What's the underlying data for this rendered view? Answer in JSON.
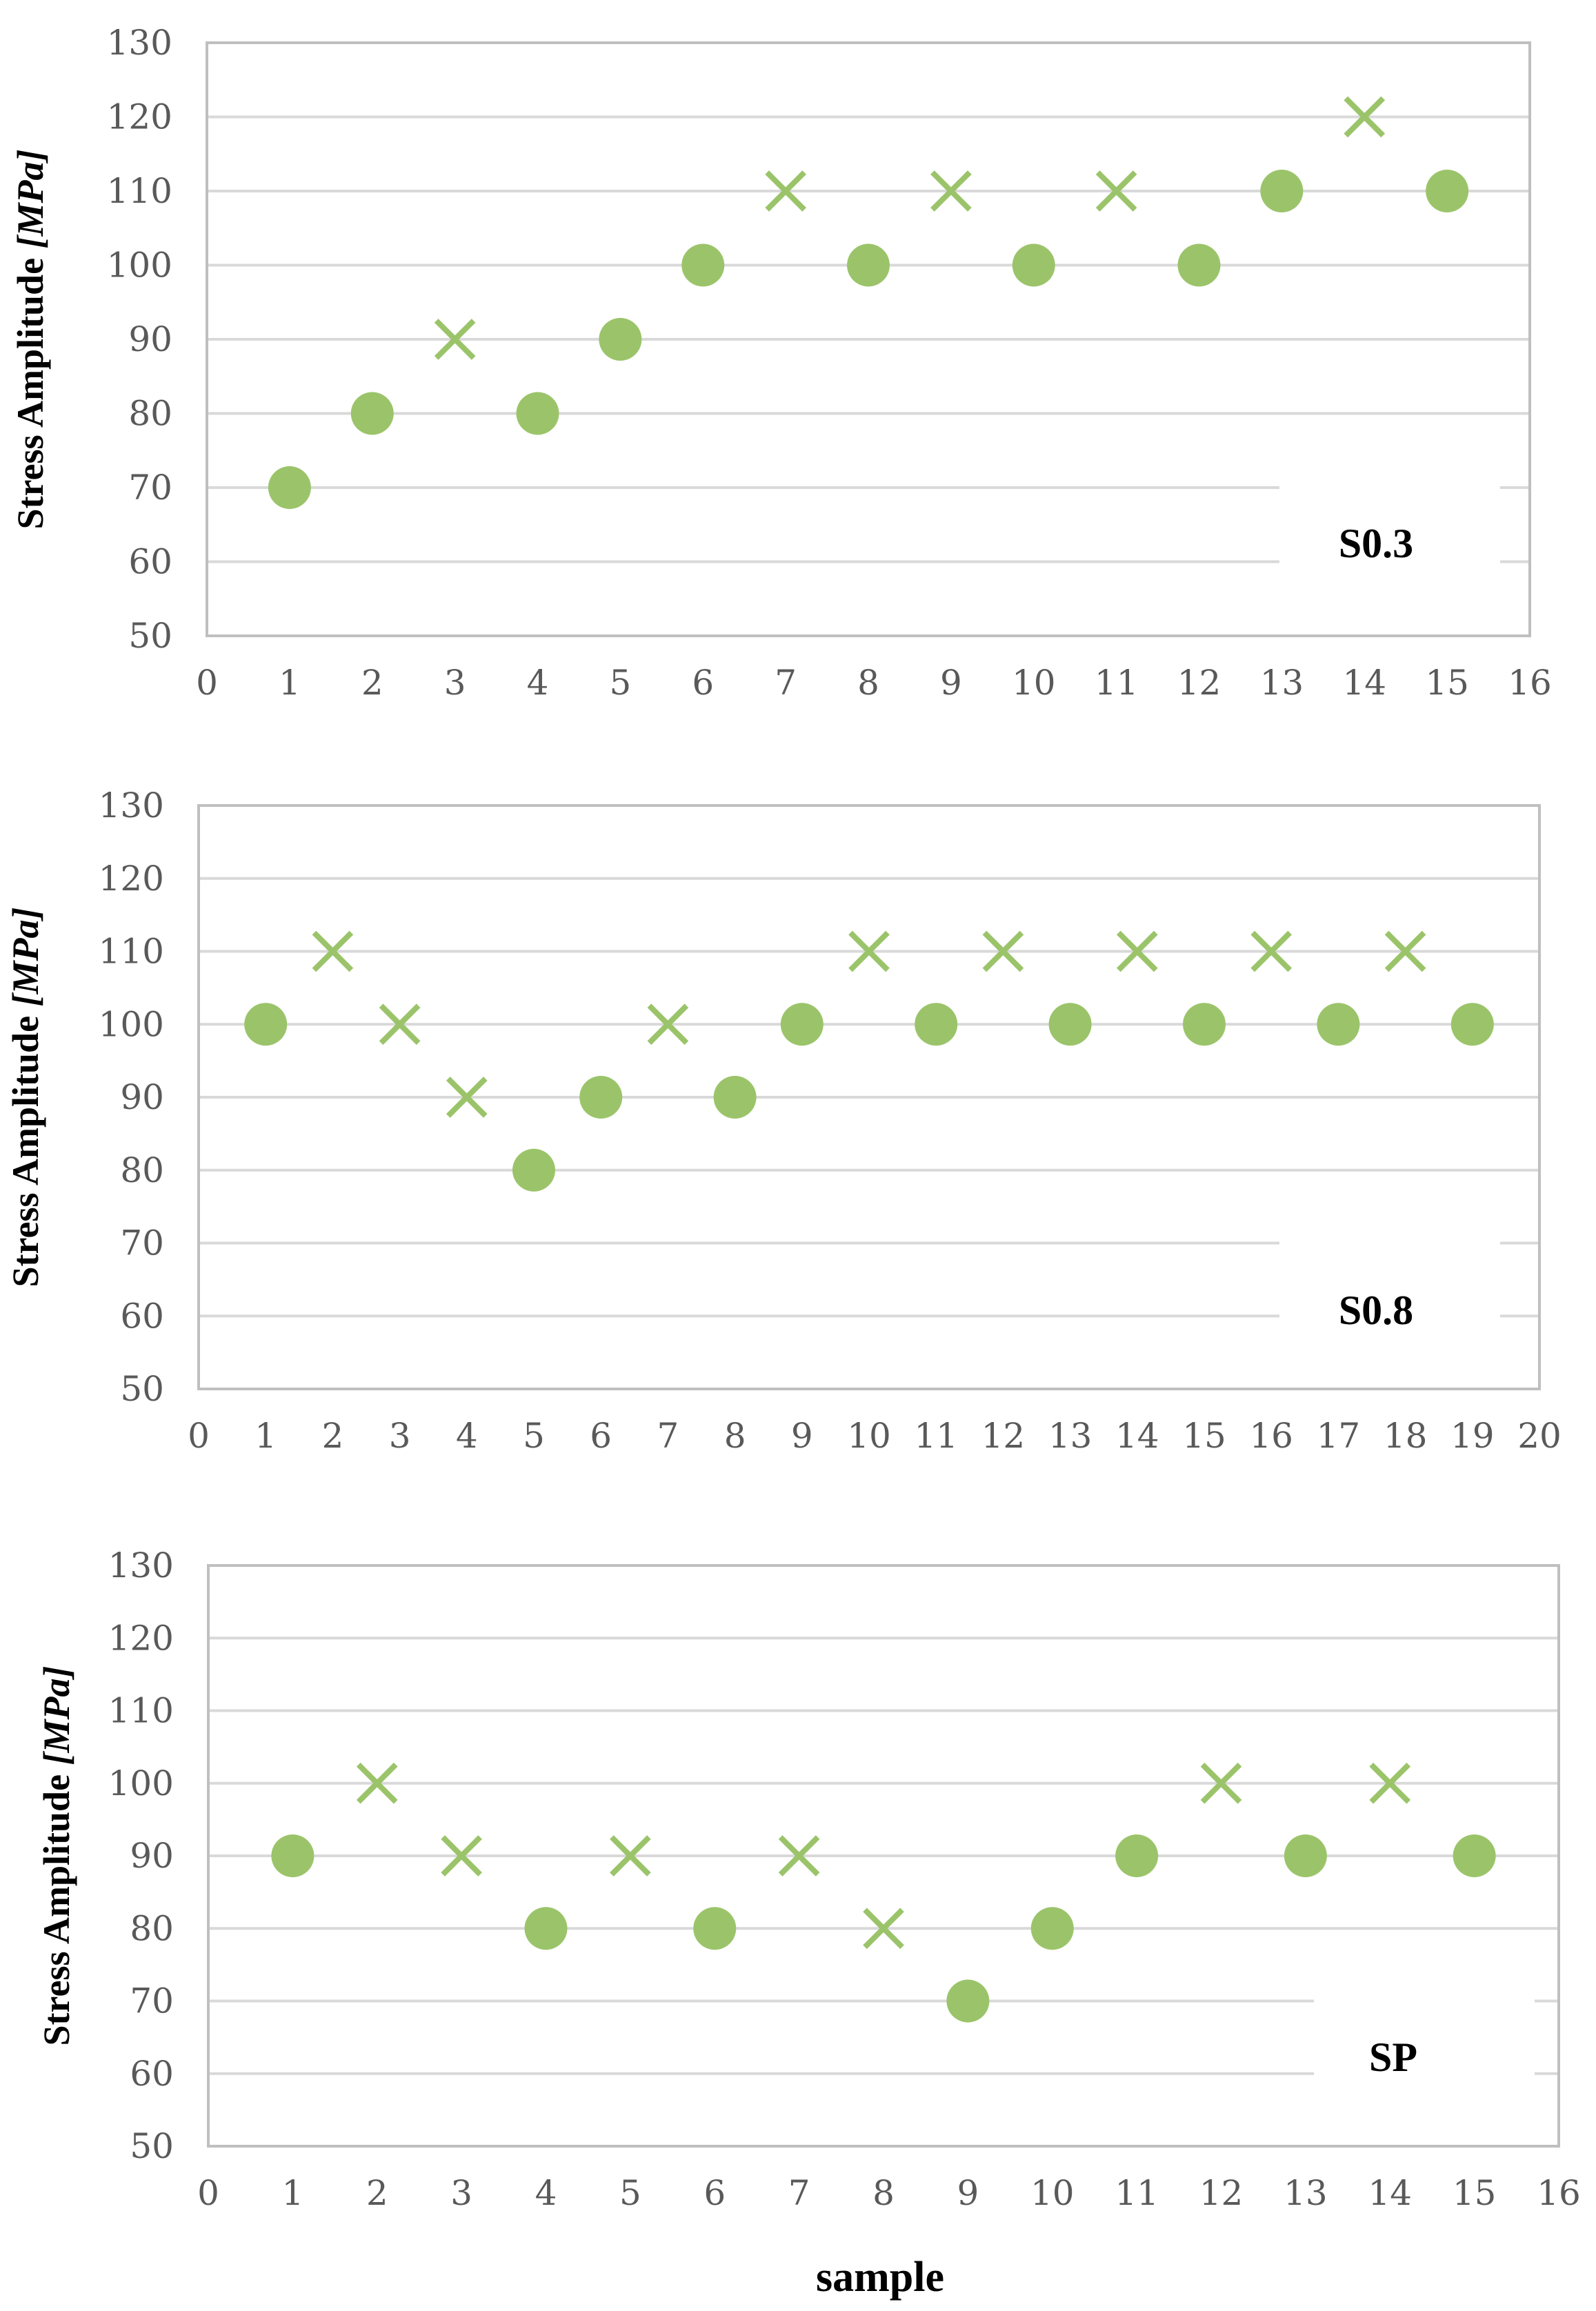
{
  "colors": {
    "marker": "#9bc46a",
    "grid": "#d9d9d9",
    "axis_text": "#595959"
  },
  "chart_data": [
    {
      "type": "scatter",
      "title": "",
      "tag": "S0.3",
      "ylabel": "Stress Amplitude",
      "ylabel_unit": "[MPa]",
      "xlabel": "",
      "xlim": [
        0,
        16
      ],
      "ylim": [
        50,
        130
      ],
      "xticks": [
        "0",
        "1",
        "2",
        "3",
        "4",
        "5",
        "6",
        "7",
        "8",
        "9",
        "10",
        "11",
        "12",
        "13",
        "14",
        "15",
        "16"
      ],
      "yticks": [
        "50",
        "60",
        "70",
        "80",
        "90",
        "100",
        "110",
        "120",
        "130"
      ],
      "grid": true,
      "series": [
        {
          "name": "circle",
          "marker": "circle",
          "x": [
            1,
            2,
            4,
            5,
            6,
            8,
            10,
            12,
            13,
            15
          ],
          "y": [
            70,
            80,
            80,
            90,
            100,
            100,
            100,
            100,
            110,
            110
          ]
        },
        {
          "name": "cross",
          "marker": "x",
          "x": [
            3,
            7,
            9,
            11,
            14
          ],
          "y": [
            90,
            110,
            110,
            110,
            120
          ]
        }
      ]
    },
    {
      "type": "scatter",
      "title": "",
      "tag": "S0.8",
      "ylabel": "Stress Amplitude",
      "ylabel_unit": "[MPa]",
      "xlabel": "",
      "xlim": [
        0,
        20
      ],
      "ylim": [
        50,
        130
      ],
      "xticks": [
        "0",
        "1",
        "2",
        "3",
        "4",
        "5",
        "6",
        "7",
        "8",
        "9",
        "10",
        "11",
        "12",
        "13",
        "14",
        "15",
        "16",
        "17",
        "18",
        "19",
        "20"
      ],
      "yticks": [
        "50",
        "60",
        "70",
        "80",
        "90",
        "100",
        "110",
        "120",
        "130"
      ],
      "grid": true,
      "series": [
        {
          "name": "circle",
          "marker": "circle",
          "x": [
            1,
            5,
            6,
            8,
            9,
            11,
            13,
            15,
            17,
            19
          ],
          "y": [
            100,
            80,
            90,
            90,
            100,
            100,
            100,
            100,
            100,
            100
          ]
        },
        {
          "name": "cross",
          "marker": "x",
          "x": [
            2,
            3,
            4,
            7,
            10,
            12,
            14,
            16,
            18
          ],
          "y": [
            110,
            100,
            90,
            100,
            110,
            110,
            110,
            110,
            110
          ]
        }
      ]
    },
    {
      "type": "scatter",
      "title": "",
      "tag": "SP",
      "ylabel": "Stress Amplitude",
      "ylabel_unit": "[MPa]",
      "xlabel": "sample",
      "xlim": [
        0,
        16
      ],
      "ylim": [
        50,
        130
      ],
      "xticks": [
        "0",
        "1",
        "2",
        "3",
        "4",
        "5",
        "6",
        "7",
        "8",
        "9",
        "10",
        "11",
        "12",
        "13",
        "14",
        "15",
        "16"
      ],
      "yticks": [
        "50",
        "60",
        "70",
        "80",
        "90",
        "100",
        "110",
        "120",
        "130"
      ],
      "grid": true,
      "series": [
        {
          "name": "circle",
          "marker": "circle",
          "x": [
            1,
            4,
            6,
            9,
            10,
            11,
            13,
            15
          ],
          "y": [
            90,
            80,
            80,
            70,
            80,
            90,
            90,
            90
          ]
        },
        {
          "name": "cross",
          "marker": "x",
          "x": [
            2,
            3,
            5,
            7,
            8,
            12,
            14
          ],
          "y": [
            100,
            90,
            90,
            90,
            80,
            100,
            100
          ]
        }
      ]
    }
  ]
}
